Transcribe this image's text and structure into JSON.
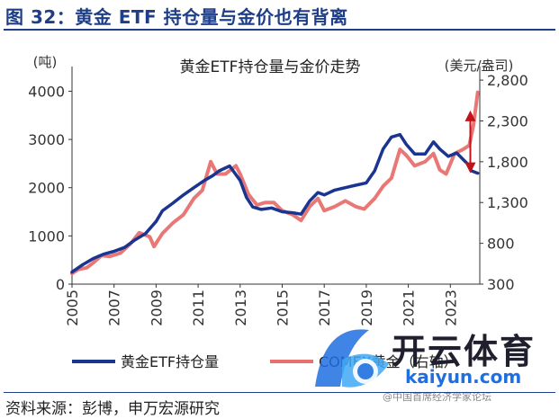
{
  "figure": {
    "title": "图 32：黄金 ETF 持仓量与金价也有背离",
    "source": "资料来源：彭博，申万宏源研究"
  },
  "watermark": {
    "brand": "开云体育",
    "url": "kaiyun.com",
    "note": "@中国首席经济学家论坛"
  },
  "colors": {
    "etf": "#1a3590",
    "gold": "#e8706e",
    "arrow": "#c0141c",
    "axis": "#333333",
    "title": "#1f3e88"
  },
  "chart_data": {
    "type": "line",
    "title": "黄金ETF持仓量与金价走势",
    "y_left_unit": "(吨)",
    "y_right_unit": "(美元/盎司)",
    "xlim": [
      2005,
      2024.4
    ],
    "ylim_left": [
      0,
      4400
    ],
    "ylim_right": [
      300,
      2900
    ],
    "x_ticks": [
      "2005",
      "2007",
      "2009",
      "2011",
      "2013",
      "2015",
      "2017",
      "2019",
      "2021",
      "2023"
    ],
    "y_left_ticks": [
      "0",
      "1000",
      "2000",
      "3000",
      "4000"
    ],
    "y_right_ticks": [
      "300",
      "800",
      "1,300",
      "1,800",
      "2,300",
      "2,800"
    ],
    "legend": [
      "黄金ETF持仓量",
      "COMEX黄金（右轴）"
    ],
    "series": [
      {
        "name": "黄金ETF持仓量",
        "axis": "left",
        "x": [
          2005.0,
          2005.5,
          2006.0,
          2006.5,
          2007.0,
          2007.5,
          2008.0,
          2008.5,
          2009.0,
          2009.3,
          2009.8,
          2010.3,
          2010.8,
          2011.3,
          2011.7,
          2012.0,
          2012.5,
          2013.0,
          2013.3,
          2013.6,
          2014.0,
          2014.5,
          2015.0,
          2015.5,
          2015.9,
          2016.3,
          2016.7,
          2017.0,
          2017.5,
          2018.0,
          2018.5,
          2019.0,
          2019.4,
          2019.8,
          2020.2,
          2020.6,
          2020.9,
          2021.3,
          2021.8,
          2022.2,
          2022.5,
          2022.9,
          2023.3,
          2023.8,
          2024.0,
          2024.3
        ],
        "values": [
          250,
          400,
          530,
          620,
          680,
          760,
          920,
          1050,
          1300,
          1520,
          1680,
          1850,
          2000,
          2150,
          2250,
          2350,
          2450,
          2150,
          1800,
          1600,
          1550,
          1580,
          1500,
          1480,
          1450,
          1720,
          1900,
          1850,
          1950,
          2000,
          2050,
          2100,
          2350,
          2800,
          3050,
          3100,
          2900,
          2700,
          2700,
          2950,
          2800,
          2650,
          2720,
          2500,
          2350,
          2300
        ]
      },
      {
        "name": "COMEX黄金（右轴）",
        "axis": "right",
        "x": [
          2005.0,
          2005.3,
          2005.7,
          2006.0,
          2006.4,
          2006.8,
          2007.3,
          2007.8,
          2008.2,
          2008.7,
          2008.9,
          2009.3,
          2009.8,
          2010.3,
          2010.8,
          2011.2,
          2011.6,
          2011.9,
          2012.3,
          2012.8,
          2013.0,
          2013.4,
          2013.8,
          2014.2,
          2014.6,
          2015.0,
          2015.5,
          2015.9,
          2016.3,
          2016.7,
          2017.0,
          2017.5,
          2018.0,
          2018.5,
          2018.9,
          2019.4,
          2019.8,
          2020.2,
          2020.6,
          2020.9,
          2021.3,
          2021.8,
          2022.2,
          2022.5,
          2022.8,
          2023.2,
          2023.6,
          2023.9,
          2024.1,
          2024.3
        ],
        "values": [
          430,
          480,
          500,
          560,
          650,
          640,
          680,
          800,
          930,
          880,
          760,
          920,
          1050,
          1150,
          1350,
          1450,
          1800,
          1650,
          1650,
          1750,
          1650,
          1400,
          1270,
          1300,
          1300,
          1200,
          1150,
          1080,
          1250,
          1350,
          1200,
          1250,
          1320,
          1250,
          1220,
          1350,
          1500,
          1600,
          1950,
          1880,
          1750,
          1800,
          1900,
          1700,
          1650,
          1900,
          1950,
          2000,
          2250,
          2650
        ]
      }
    ],
    "annotation": {
      "type": "double-arrow",
      "x": 2023.95,
      "from_left_value": 2300,
      "to_left_value": 3600
    }
  }
}
